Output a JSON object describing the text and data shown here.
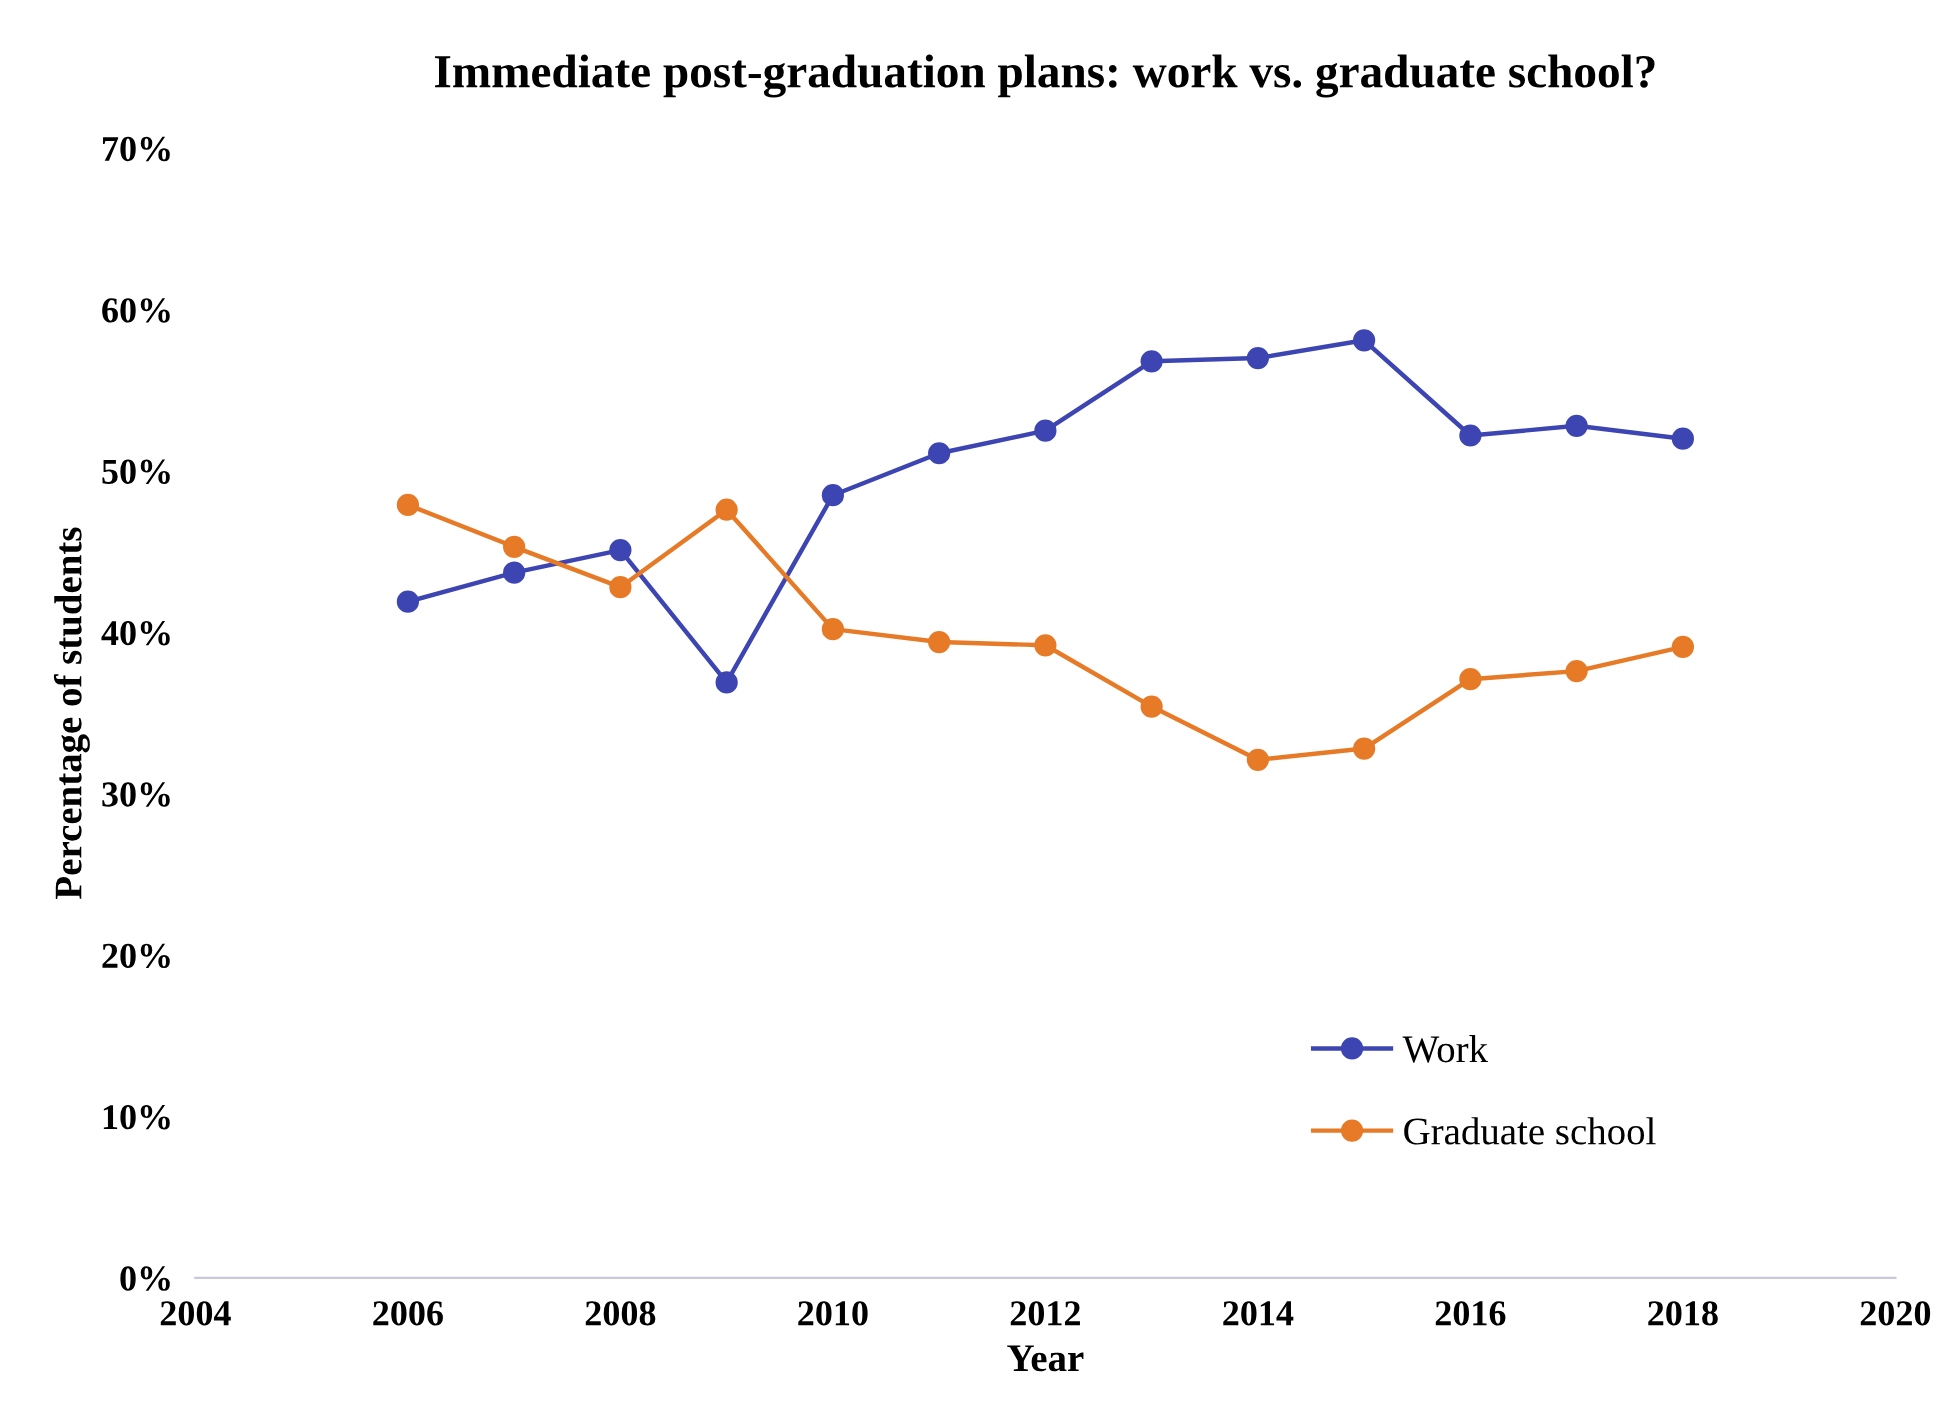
{
  "chart_data": {
    "type": "line",
    "title": "Immediate post-graduation plans: work vs. graduate school?",
    "xlabel": "Year",
    "ylabel": "Percentage of students",
    "x": [
      2006,
      2007,
      2008,
      2009,
      2010,
      2011,
      2012,
      2013,
      2014,
      2015,
      2016,
      2017,
      2018
    ],
    "series": [
      {
        "name": "Work",
        "color": "#3d45b2",
        "values": [
          41.9,
          43.7,
          45.1,
          36.9,
          48.5,
          51.1,
          52.5,
          56.8,
          57.0,
          58.1,
          52.2,
          52.8,
          52.0
        ]
      },
      {
        "name": "Graduate school",
        "color": "#e67a27",
        "values": [
          47.9,
          45.3,
          42.8,
          47.6,
          40.2,
          39.4,
          39.2,
          35.4,
          32.1,
          32.8,
          37.1,
          37.6,
          39.1
        ]
      }
    ],
    "xlim": [
      2004,
      2020
    ],
    "xticks": [
      2004,
      2006,
      2008,
      2010,
      2012,
      2014,
      2016,
      2018,
      2020
    ],
    "ylim": [
      0,
      70
    ],
    "yticks": [
      {
        "value": 0,
        "label": "0%"
      },
      {
        "value": 10,
        "label": "10%"
      },
      {
        "value": 20,
        "label": "20%"
      },
      {
        "value": 30,
        "label": "30%"
      },
      {
        "value": 40,
        "label": "40%"
      },
      {
        "value": 50,
        "label": "50%"
      },
      {
        "value": 60,
        "label": "60%"
      },
      {
        "value": 70,
        "label": "70%"
      }
    ],
    "legend": "bottom right",
    "marker": "circle",
    "line_style": "solid",
    "grid": false
  }
}
